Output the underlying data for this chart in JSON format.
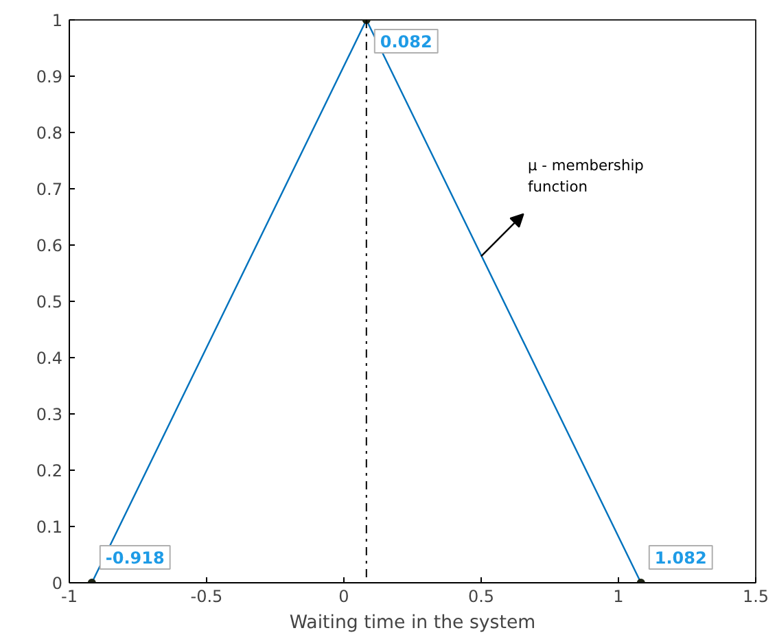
{
  "chart_data": {
    "type": "line",
    "xlabel": "Waiting time in the system",
    "xlim": [
      -1,
      1.5
    ],
    "xticks": [
      -1,
      -0.5,
      0,
      0.5,
      1,
      1.5
    ],
    "ylim": [
      0,
      1
    ],
    "yticks": [
      0,
      0.1,
      0.2,
      0.3,
      0.4,
      0.5,
      0.6,
      0.7,
      0.8,
      0.9,
      1
    ],
    "grid": false,
    "series": [
      {
        "color": "#0072bd",
        "x": [
          -0.918,
          0.082,
          1.082
        ],
        "values": [
          0,
          1,
          0
        ]
      },
      {
        "type": "scatter",
        "marker": "circle",
        "color": "#1e2414",
        "x": [
          -0.918,
          0.082,
          1.082
        ],
        "values": [
          0,
          1,
          0
        ]
      }
    ],
    "ref_lines": [
      {
        "axis": "x",
        "value": 0.082,
        "color": "#000000",
        "line_style": "dashdot"
      }
    ],
    "annotations": [
      {
        "text": "-0.918",
        "x": -0.918,
        "y": 0
      },
      {
        "text": "0.082",
        "x": 0.082,
        "y": 1
      },
      {
        "text": "1.082",
        "x": 1.082,
        "y": 0
      },
      {
        "text": "μ - membership\nfunction",
        "x": 0.5,
        "y": 0.58
      }
    ]
  }
}
